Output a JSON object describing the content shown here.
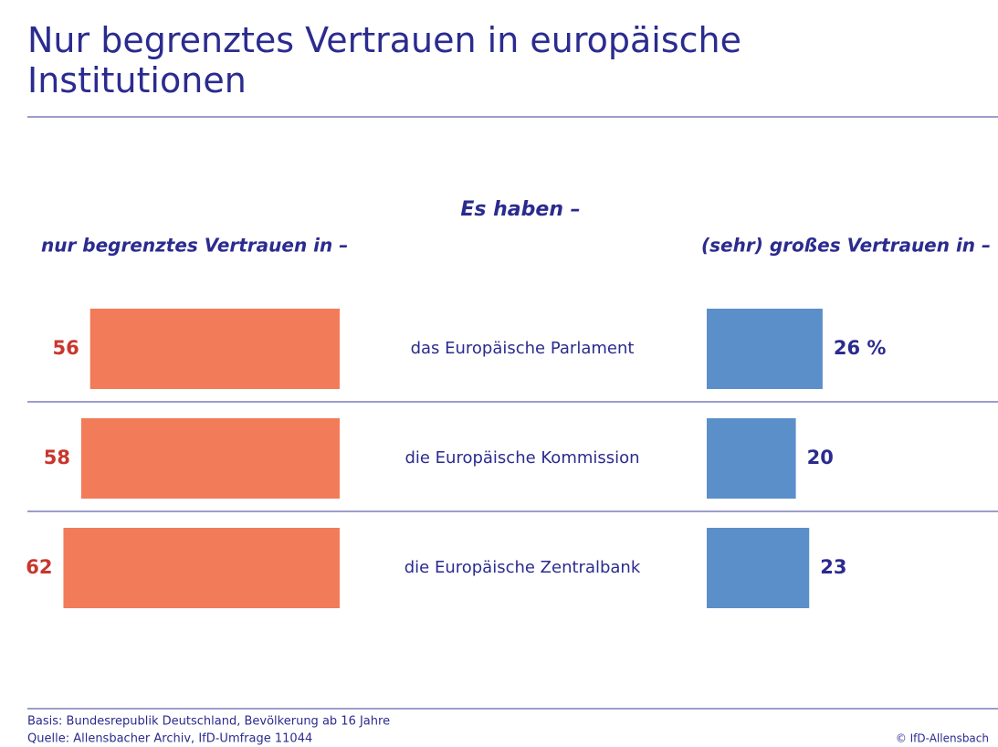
{
  "chart_data": {
    "type": "butterfly-bar",
    "title": "Nur begrenztes Vertrauen in europäische Institutionen",
    "subtitle": "Es haben –",
    "categories": [
      "das Europäische Parlament",
      "die Europäische Kommission",
      "die Europäische Zentralbank"
    ],
    "series": [
      {
        "name": "nur begrenztes Vertrauen in –",
        "color": "#f27b59",
        "values": [
          56,
          58,
          62
        ]
      },
      {
        "name": "(sehr) großes Vertrauen in –",
        "color": "#5b8fca",
        "values": [
          26,
          20,
          23
        ],
        "value_labels": [
          "26 %",
          "20",
          "23"
        ]
      }
    ],
    "basis": "Basis: Bundesrepublik Deutschland, Bevölkerung ab 16 Jahre",
    "source": "Quelle: Allensbacher Archiv, IfD-Umfrage 11044",
    "copyright": "© IfD-Allensbach"
  }
}
